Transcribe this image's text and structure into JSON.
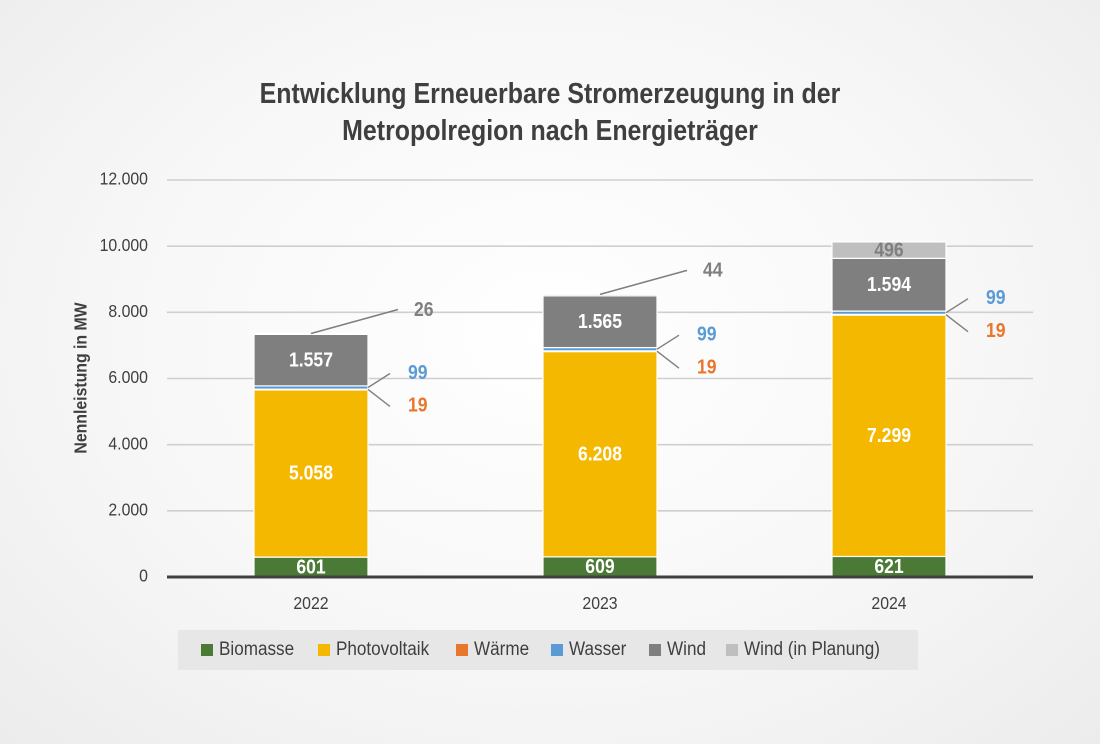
{
  "chart_data": {
    "type": "bar",
    "stacked": true,
    "title_lines": [
      "Entwicklung Erneuerbare Stromerzeugung in der",
      "Metropolregion nach Energieträger"
    ],
    "ylabel": "Nennleistung in MW",
    "xlabel": "",
    "ylim": [
      0,
      12000
    ],
    "yticks": [
      "0",
      "2.000",
      "4.000",
      "6.000",
      "8.000",
      "10.000",
      "12.000"
    ],
    "grid": true,
    "legend_position": "bottom",
    "categories": [
      "2022",
      "2023",
      "2024"
    ],
    "series": [
      {
        "name": "Biomasse",
        "color": "#4a7a35",
        "values": [
          601,
          609,
          621
        ],
        "labels": [
          "601",
          "609",
          "621"
        ],
        "label_color": "#ffffff"
      },
      {
        "name": "Photovoltaik",
        "color": "#f5b800",
        "values": [
          5058,
          6208,
          7299
        ],
        "labels": [
          "5.058",
          "6.208",
          "7.299"
        ],
        "label_color": "#ffffff"
      },
      {
        "name": "Wärme",
        "color": "#e8762c",
        "values": [
          19,
          19,
          19
        ],
        "labels": [
          "19",
          "19",
          "19"
        ],
        "label_color": "#e8762c"
      },
      {
        "name": "Wasser",
        "color": "#5b9bd5",
        "values": [
          99,
          99,
          99
        ],
        "labels": [
          "99",
          "99",
          "99"
        ],
        "label_color": "#5b9bd5"
      },
      {
        "name": "Wind",
        "color": "#7f7f7f",
        "values": [
          1557,
          1565,
          1594
        ],
        "labels": [
          "1.557",
          "1.565",
          "1.594"
        ],
        "label_color": "#ffffff"
      },
      {
        "name": "Wind (in Planung)",
        "color": "#bfbfbf",
        "values": [
          26,
          44,
          496
        ],
        "labels": [
          "26",
          "44",
          "496"
        ],
        "label_color": "#7f7f7f"
      }
    ]
  }
}
